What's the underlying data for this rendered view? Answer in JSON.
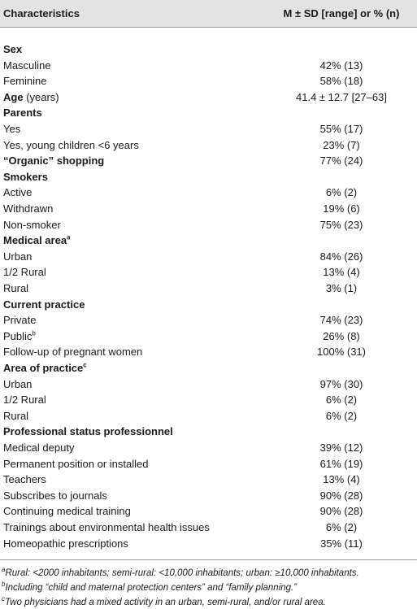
{
  "table": {
    "header": {
      "characteristic": "Characteristics",
      "value": "M ± SD [range] or % (n)"
    },
    "rows": [
      {
        "label": "Sex",
        "heading": true
      },
      {
        "label": "Masculine",
        "value": "42% (13)"
      },
      {
        "label": "Feminine",
        "value": "58% (18)"
      },
      {
        "label": "Age",
        "suffix": "(years)",
        "heading": true,
        "value": "41.4 ± 12.7 [27–63]"
      },
      {
        "label": "Parents",
        "heading": true
      },
      {
        "label": "Yes",
        "value": "55% (17)"
      },
      {
        "label": "Yes, young children <6 years",
        "value": "23% (7)"
      },
      {
        "label": "“Organic” shopping",
        "heading": true,
        "value": "77% (24)"
      },
      {
        "label": "Smokers",
        "heading": true
      },
      {
        "label": "Active",
        "value": "6% (2)"
      },
      {
        "label": "Withdrawn",
        "value": "19% (6)"
      },
      {
        "label": "Non-smoker",
        "value": "75% (23)"
      },
      {
        "label": "Medical area",
        "note": "a",
        "heading": true
      },
      {
        "label": "Urban",
        "value": "84% (26)"
      },
      {
        "label": "1/2 Rural",
        "value": "13% (4)"
      },
      {
        "label": "Rural",
        "value": "3% (1)"
      },
      {
        "label": "Current practice",
        "heading": true
      },
      {
        "label": "Private",
        "value": "74% (23)"
      },
      {
        "label": "Public",
        "note": "b",
        "value": "26% (8)"
      },
      {
        "label": "Follow-up of pregnant women",
        "value": "100% (31)"
      },
      {
        "label": "Area of practice",
        "note": "c",
        "heading": true
      },
      {
        "label": "Urban",
        "value": "97% (30)"
      },
      {
        "label": "1/2 Rural",
        "value": "6% (2)"
      },
      {
        "label": "Rural",
        "value": "6% (2)"
      },
      {
        "label": "Professional status professionnel",
        "heading": true
      },
      {
        "label": "Medical deputy",
        "value": "39% (12)"
      },
      {
        "label": "Permanent position or installed",
        "value": "61% (19)"
      },
      {
        "label": "Teachers",
        "value": "13% (4)"
      },
      {
        "label": "Subscribes to journals",
        "value": "90% (28)"
      },
      {
        "label": "Continuing medical training",
        "value": "90% (28)"
      },
      {
        "label": "Trainings about environmental health issues",
        "value": "6% (2)"
      },
      {
        "label": "Homeopathic prescriptions",
        "value": "35% (11)"
      }
    ],
    "footnotes": [
      {
        "mark": "a",
        "text": "Rural: <2000 inhabitants; semi-rural: <10,000 inhabitants; urban: ≥10,000 inhabitants."
      },
      {
        "mark": "b",
        "text": "Including “child and maternal protection centers” and “family planning.”"
      },
      {
        "mark": "c",
        "text": "Two physicians had a mixed activity in an urban, semi-rural, and/or rural area."
      }
    ]
  }
}
